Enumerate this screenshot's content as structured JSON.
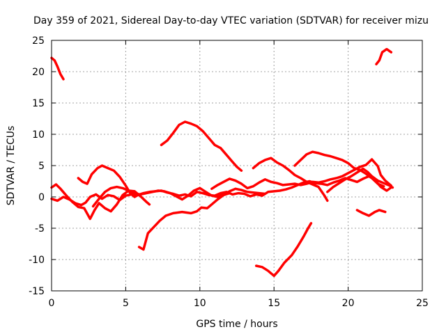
{
  "chart_data": {
    "type": "line",
    "title": "Day 359 of 2021, Sidereal Day-to-day VTEC variation (SDTVAR) for receiver mizu",
    "xlabel": "GPS time / hours",
    "ylabel": "SDTVAR / TECUs",
    "xlim": [
      0,
      25
    ],
    "ylim": [
      -15,
      25
    ],
    "xticks": [
      0,
      5,
      10,
      15,
      20,
      25
    ],
    "yticks": [
      -15,
      -10,
      -5,
      0,
      5,
      10,
      15,
      20,
      25
    ],
    "grid": true,
    "series_color": "#ff0000",
    "series": [
      {
        "name": "s1",
        "points": [
          [
            0.0,
            22.2
          ],
          [
            0.2,
            21.8
          ],
          [
            0.4,
            20.8
          ],
          [
            0.6,
            19.6
          ],
          [
            0.8,
            18.8
          ]
        ]
      },
      {
        "name": "s2",
        "points": [
          [
            7.4,
            8.3
          ],
          [
            7.8,
            9.0
          ],
          [
            8.2,
            10.2
          ],
          [
            8.6,
            11.5
          ],
          [
            9.0,
            12.0
          ],
          [
            9.4,
            11.7
          ],
          [
            9.8,
            11.3
          ],
          [
            10.2,
            10.5
          ],
          [
            10.6,
            9.4
          ],
          [
            11.0,
            8.3
          ],
          [
            11.4,
            7.8
          ],
          [
            11.8,
            6.7
          ],
          [
            12.2,
            5.6
          ],
          [
            12.5,
            4.8
          ],
          [
            12.8,
            4.2
          ]
        ]
      },
      {
        "name": "s3",
        "points": [
          [
            21.9,
            21.2
          ],
          [
            22.1,
            21.8
          ],
          [
            22.3,
            23.1
          ],
          [
            22.6,
            23.6
          ],
          [
            22.9,
            23.1
          ]
        ]
      },
      {
        "name": "s4",
        "points": [
          [
            5.9,
            -8.0
          ],
          [
            6.2,
            -8.4
          ],
          [
            6.5,
            -5.8
          ],
          [
            6.9,
            -4.8
          ],
          [
            7.3,
            -3.8
          ],
          [
            7.7,
            -3.0
          ],
          [
            8.2,
            -2.6
          ],
          [
            8.8,
            -2.4
          ],
          [
            9.4,
            -2.6
          ],
          [
            9.8,
            -2.3
          ],
          [
            10.1,
            -1.7
          ],
          [
            10.5,
            -1.8
          ],
          [
            10.8,
            -1.2
          ],
          [
            11.2,
            -0.4
          ],
          [
            11.6,
            0.3
          ],
          [
            12.0,
            0.6
          ]
        ]
      },
      {
        "name": "s5",
        "points": [
          [
            13.8,
            -11.0
          ],
          [
            14.2,
            -11.2
          ],
          [
            14.6,
            -11.8
          ],
          [
            15.0,
            -12.6
          ],
          [
            15.3,
            -11.8
          ],
          [
            15.7,
            -10.5
          ],
          [
            16.2,
            -9.3
          ],
          [
            16.6,
            -7.9
          ],
          [
            17.0,
            -6.3
          ],
          [
            17.3,
            -5.0
          ],
          [
            17.5,
            -4.2
          ]
        ]
      },
      {
        "name": "s6",
        "points": [
          [
            20.6,
            -2.1
          ],
          [
            21.0,
            -2.6
          ],
          [
            21.4,
            -3.0
          ],
          [
            21.8,
            -2.4
          ],
          [
            22.1,
            -2.1
          ],
          [
            22.5,
            -2.4
          ]
        ]
      },
      {
        "name": "s7",
        "points": [
          [
            0.0,
            -0.3
          ],
          [
            0.4,
            -0.6
          ],
          [
            0.8,
            0.0
          ],
          [
            1.2,
            -0.4
          ],
          [
            1.6,
            -1.0
          ],
          [
            2.0,
            -1.3
          ],
          [
            2.3,
            -0.9
          ],
          [
            2.6,
            0.0
          ],
          [
            3.0,
            0.4
          ],
          [
            3.4,
            -0.3
          ],
          [
            3.8,
            0.3
          ],
          [
            4.2,
            0.1
          ],
          [
            4.6,
            -0.5
          ],
          [
            5.0,
            0.2
          ],
          [
            5.4,
            0.4
          ],
          [
            5.8,
            0.3
          ],
          [
            6.2,
            0.6
          ],
          [
            6.6,
            0.8
          ],
          [
            7.0,
            0.9
          ],
          [
            7.4,
            1.0
          ],
          [
            7.8,
            0.7
          ],
          [
            8.2,
            0.5
          ],
          [
            8.6,
            0.2
          ],
          [
            9.0,
            0.4
          ],
          [
            9.4,
            0.1
          ],
          [
            9.8,
            0.8
          ],
          [
            10.2,
            0.6
          ],
          [
            10.6,
            0.3
          ],
          [
            11.0,
            0.2
          ],
          [
            11.4,
            0.6
          ],
          [
            11.8,
            0.8
          ],
          [
            12.2,
            0.4
          ],
          [
            12.6,
            0.6
          ],
          [
            13.0,
            0.5
          ],
          [
            13.4,
            0.1
          ],
          [
            13.8,
            0.4
          ],
          [
            14.2,
            0.2
          ],
          [
            14.6,
            0.8
          ],
          [
            15.0,
            0.9
          ],
          [
            15.4,
            1.0
          ],
          [
            15.8,
            1.2
          ],
          [
            16.2,
            1.5
          ],
          [
            16.6,
            1.9
          ],
          [
            17.0,
            2.3
          ],
          [
            17.4,
            2.5
          ],
          [
            17.8,
            2.2
          ],
          [
            18.2,
            2.1
          ],
          [
            18.6,
            1.9
          ],
          [
            19.0,
            2.3
          ],
          [
            19.4,
            2.6
          ],
          [
            19.8,
            3.0
          ],
          [
            20.2,
            2.7
          ],
          [
            20.6,
            2.4
          ],
          [
            21.0,
            2.9
          ],
          [
            21.4,
            3.3
          ],
          [
            21.8,
            2.7
          ],
          [
            22.2,
            1.6
          ],
          [
            22.6,
            1.0
          ],
          [
            22.9,
            1.5
          ]
        ]
      },
      {
        "name": "s8",
        "points": [
          [
            0.0,
            1.5
          ],
          [
            0.3,
            2.0
          ],
          [
            0.6,
            1.3
          ],
          [
            1.0,
            0.2
          ],
          [
            1.4,
            -0.8
          ],
          [
            1.8,
            -1.6
          ],
          [
            2.2,
            -1.8
          ],
          [
            2.6,
            -3.5
          ],
          [
            2.9,
            -2.1
          ],
          [
            3.2,
            -1.0
          ],
          [
            3.6,
            -1.8
          ],
          [
            4.0,
            -2.3
          ],
          [
            4.4,
            -1.2
          ],
          [
            4.8,
            0.3
          ],
          [
            5.2,
            1.0
          ],
          [
            5.6,
            0.9
          ],
          [
            6.0,
            0.1
          ],
          [
            6.4,
            -0.8
          ],
          [
            6.6,
            -1.2
          ]
        ]
      },
      {
        "name": "s9",
        "points": [
          [
            1.8,
            3.0
          ],
          [
            2.1,
            2.4
          ],
          [
            2.4,
            2.1
          ],
          [
            2.7,
            3.6
          ],
          [
            3.1,
            4.6
          ],
          [
            3.4,
            5.0
          ],
          [
            3.8,
            4.6
          ],
          [
            4.2,
            4.2
          ],
          [
            4.6,
            3.2
          ],
          [
            5.0,
            1.8
          ],
          [
            5.3,
            0.6
          ],
          [
            5.6,
            0.0
          ],
          [
            5.9,
            0.4
          ]
        ]
      },
      {
        "name": "s10",
        "points": [
          [
            10.8,
            1.3
          ],
          [
            11.2,
            1.9
          ],
          [
            11.6,
            2.4
          ],
          [
            12.0,
            2.9
          ],
          [
            12.4,
            2.6
          ],
          [
            12.8,
            2.1
          ],
          [
            13.2,
            1.4
          ],
          [
            13.6,
            1.7
          ],
          [
            14.0,
            2.3
          ],
          [
            14.4,
            2.8
          ],
          [
            14.8,
            2.4
          ],
          [
            15.2,
            2.2
          ],
          [
            15.6,
            1.9
          ],
          [
            16.0,
            2.0
          ],
          [
            16.4,
            2.1
          ],
          [
            16.8,
            1.9
          ],
          [
            17.2,
            2.1
          ],
          [
            17.6,
            2.4
          ],
          [
            18.0,
            2.3
          ],
          [
            18.4,
            2.5
          ],
          [
            18.8,
            2.8
          ],
          [
            19.2,
            3.0
          ],
          [
            19.6,
            3.3
          ],
          [
            20.0,
            3.8
          ],
          [
            20.4,
            4.3
          ],
          [
            20.8,
            4.8
          ],
          [
            21.2,
            5.1
          ],
          [
            21.6,
            6.0
          ],
          [
            22.0,
            4.9
          ],
          [
            22.2,
            3.5
          ],
          [
            22.5,
            2.6
          ],
          [
            22.9,
            1.8
          ]
        ]
      },
      {
        "name": "s11",
        "points": [
          [
            13.6,
            4.6
          ],
          [
            14.0,
            5.4
          ],
          [
            14.4,
            5.9
          ],
          [
            14.8,
            6.2
          ],
          [
            15.2,
            5.5
          ],
          [
            15.6,
            5.0
          ],
          [
            16.0,
            4.3
          ],
          [
            16.4,
            3.5
          ],
          [
            16.8,
            3.0
          ],
          [
            17.2,
            2.4
          ],
          [
            17.6,
            2.0
          ],
          [
            18.0,
            1.6
          ],
          [
            18.2,
            0.9
          ],
          [
            18.4,
            0.2
          ],
          [
            18.6,
            -0.6
          ]
        ]
      },
      {
        "name": "s12",
        "points": [
          [
            16.4,
            5.0
          ],
          [
            16.8,
            5.9
          ],
          [
            17.2,
            6.8
          ],
          [
            17.6,
            7.2
          ],
          [
            18.0,
            7.0
          ],
          [
            18.4,
            6.7
          ],
          [
            18.8,
            6.5
          ],
          [
            19.2,
            6.2
          ],
          [
            19.6,
            5.9
          ],
          [
            20.0,
            5.4
          ],
          [
            20.4,
            4.6
          ],
          [
            20.8,
            4.3
          ],
          [
            21.2,
            3.7
          ],
          [
            21.6,
            3.0
          ],
          [
            22.0,
            2.1
          ],
          [
            22.4,
            1.7
          ]
        ]
      },
      {
        "name": "s13",
        "points": [
          [
            18.6,
            0.8
          ],
          [
            19.0,
            1.6
          ],
          [
            19.4,
            2.2
          ],
          [
            19.8,
            2.8
          ],
          [
            20.2,
            3.3
          ],
          [
            20.6,
            3.9
          ],
          [
            21.0,
            4.5
          ],
          [
            21.3,
            4.0
          ],
          [
            21.6,
            3.3
          ],
          [
            22.0,
            2.6
          ],
          [
            22.4,
            2.2
          ],
          [
            22.8,
            1.8
          ],
          [
            23.0,
            1.5
          ]
        ]
      },
      {
        "name": "s14",
        "points": [
          [
            2.8,
            -1.5
          ],
          [
            3.2,
            -0.3
          ],
          [
            3.6,
            0.8
          ],
          [
            4.0,
            1.4
          ],
          [
            4.4,
            1.6
          ],
          [
            4.8,
            1.4
          ],
          [
            5.2,
            1.0
          ],
          [
            5.6,
            0.5
          ],
          [
            6.0,
            0.4
          ],
          [
            6.4,
            0.6
          ],
          [
            6.8,
            0.8
          ],
          [
            7.2,
            1.0
          ],
          [
            7.6,
            0.9
          ],
          [
            8.0,
            0.6
          ],
          [
            8.4,
            0.1
          ],
          [
            8.8,
            -0.4
          ],
          [
            9.2,
            0.2
          ],
          [
            9.6,
            1.0
          ],
          [
            10.0,
            1.4
          ],
          [
            10.4,
            0.8
          ],
          [
            10.8,
            0.2
          ],
          [
            11.2,
            0.0
          ],
          [
            11.6,
            0.4
          ],
          [
            12.0,
            0.9
          ],
          [
            12.4,
            1.3
          ],
          [
            12.8,
            1.1
          ],
          [
            13.2,
            0.8
          ],
          [
            13.6,
            0.7
          ],
          [
            14.0,
            0.6
          ],
          [
            14.4,
            0.5
          ]
        ]
      }
    ]
  }
}
